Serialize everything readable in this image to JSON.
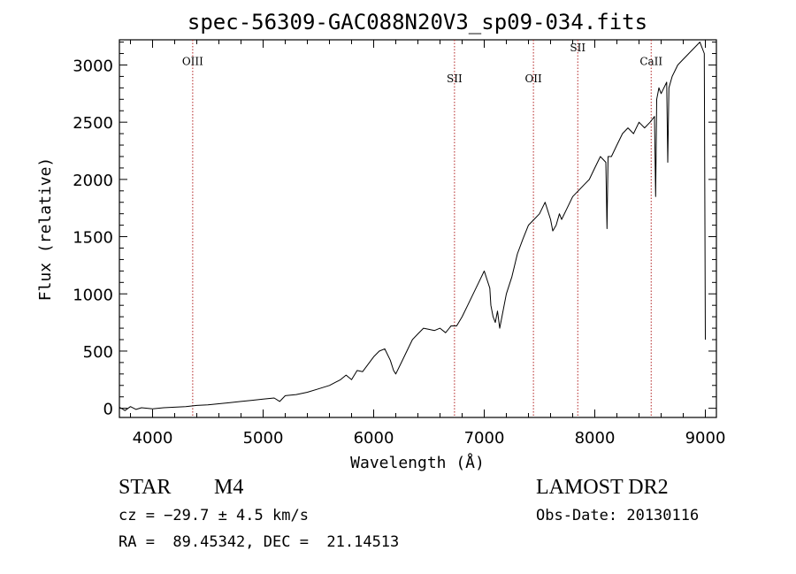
{
  "chart_data": {
    "type": "line",
    "title": "spec-56309-GAC088N20V3_sp09-034.fits",
    "xlabel": "Wavelength (Å)",
    "ylabel": "Flux (relative)",
    "xlim": [
      3700,
      9100
    ],
    "ylim": [
      -80,
      3220
    ],
    "xticks": [
      4000,
      5000,
      6000,
      7000,
      8000,
      9000
    ],
    "yticks": [
      0,
      500,
      1000,
      1500,
      2000,
      2500,
      3000
    ],
    "line_color": "#000000",
    "marker_color": "#b22222",
    "spectral_lines": [
      {
        "label": "OIII",
        "x": 4363,
        "label_y": 3000
      },
      {
        "label": "SII",
        "x": 6731,
        "label_y": 2850
      },
      {
        "label": "OII",
        "x": 7445,
        "label_y": 2850
      },
      {
        "label": "SII",
        "x": 7846,
        "label_y": 3120
      },
      {
        "label": "CaII",
        "x": 8510,
        "label_y": 3000
      }
    ],
    "x": [
      3700,
      3750,
      3800,
      3850,
      3900,
      3950,
      4000,
      4100,
      4200,
      4300,
      4400,
      4500,
      4600,
      4700,
      4800,
      4900,
      5000,
      5100,
      5150,
      5200,
      5300,
      5400,
      5500,
      5600,
      5700,
      5750,
      5800,
      5850,
      5900,
      6000,
      6050,
      6100,
      6150,
      6180,
      6200,
      6250,
      6300,
      6350,
      6400,
      6450,
      6500,
      6550,
      6600,
      6650,
      6700,
      6750,
      6800,
      6850,
      6900,
      6950,
      7000,
      7050,
      7060,
      7080,
      7100,
      7120,
      7140,
      7160,
      7200,
      7250,
      7300,
      7350,
      7400,
      7450,
      7500,
      7550,
      7600,
      7620,
      7650,
      7680,
      7700,
      7750,
      7800,
      7850,
      7900,
      7950,
      8000,
      8050,
      8100,
      8110,
      8120,
      8150,
      8200,
      8250,
      8300,
      8350,
      8400,
      8450,
      8500,
      8540,
      8550,
      8560,
      8580,
      8600,
      8650,
      8660,
      8670,
      8700,
      8750,
      8800,
      8850,
      8900,
      8950,
      8990,
      9000
    ],
    "y": [
      10,
      -20,
      15,
      -10,
      5,
      0,
      -5,
      5,
      10,
      15,
      25,
      30,
      40,
      50,
      60,
      70,
      80,
      90,
      60,
      110,
      120,
      140,
      170,
      200,
      250,
      290,
      250,
      330,
      320,
      450,
      500,
      520,
      420,
      330,
      300,
      400,
      500,
      600,
      650,
      700,
      690,
      680,
      700,
      660,
      720,
      720,
      800,
      900,
      1000,
      1100,
      1200,
      1050,
      900,
      800,
      750,
      850,
      700,
      800,
      1000,
      1150,
      1350,
      1480,
      1600,
      1650,
      1700,
      1800,
      1650,
      1550,
      1600,
      1700,
      1650,
      1750,
      1850,
      1900,
      1950,
      2000,
      2100,
      2200,
      2150,
      1570,
      2200,
      2200,
      2300,
      2400,
      2450,
      2400,
      2500,
      2450,
      2500,
      2550,
      1850,
      2700,
      2800,
      2750,
      2850,
      2150,
      2800,
      2900,
      3000,
      3050,
      3100,
      3150,
      3200,
      3100,
      600
    ]
  },
  "info": {
    "object_type": "STAR",
    "subclass": "M4",
    "survey": "LAMOST DR2",
    "cz": "cz = −29.7 ± 4.5 km/s",
    "obs_date": "Obs-Date: 20130116",
    "coords": "RA =  89.45342, DEC =  21.14513"
  }
}
